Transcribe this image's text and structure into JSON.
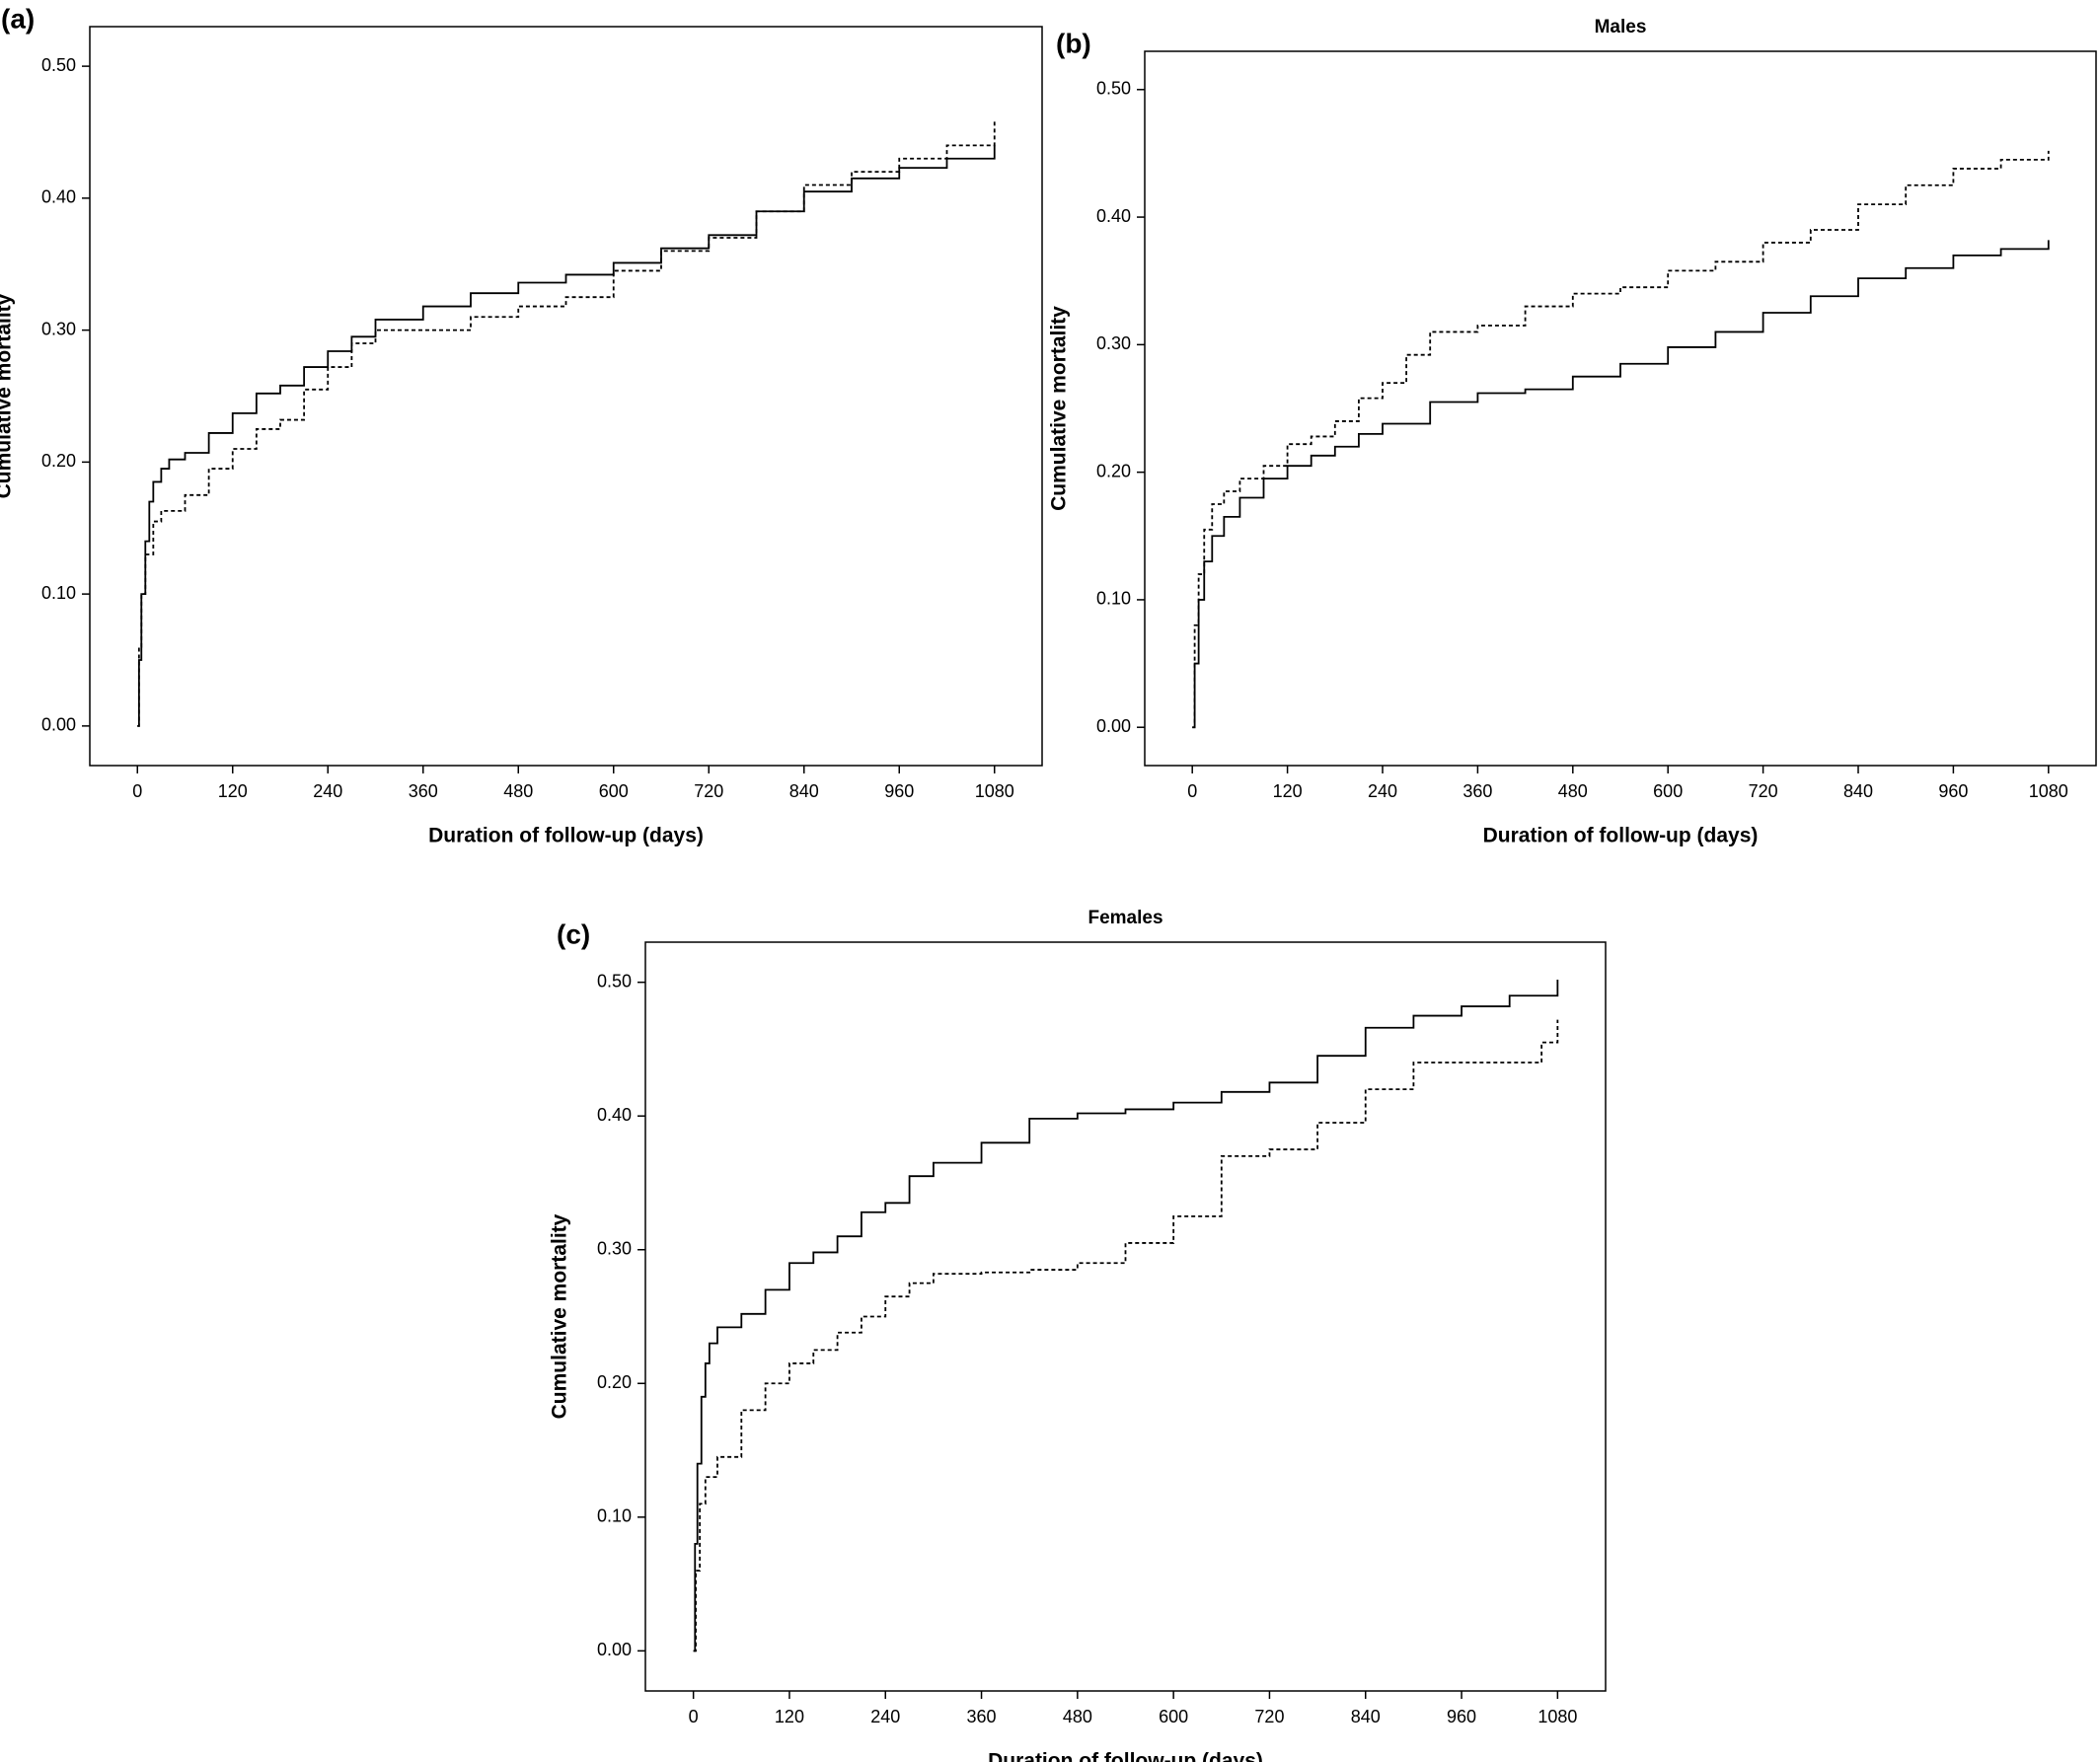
{
  "chart_data": [
    {
      "type": "line",
      "panel": "(a)",
      "xlabel": "Duration of follow-up (days)",
      "ylabel": "Cumulative mortality",
      "xlim": [
        -60,
        1140
      ],
      "ylim": [
        -0.03,
        0.53
      ],
      "xticks": [
        0,
        120,
        240,
        360,
        480,
        600,
        720,
        840,
        960,
        1080
      ],
      "yticks": [
        {
          "value": 0,
          "label": "0.00"
        },
        {
          "value": 0.1,
          "label": "0.10"
        },
        {
          "value": 0.2,
          "label": "0.20"
        },
        {
          "value": 0.3,
          "label": "0.30"
        },
        {
          "value": 0.4,
          "label": "0.40"
        },
        {
          "value": 0.5,
          "label": "0.50"
        }
      ],
      "series": [
        {
          "style": "solid",
          "color": "#000000",
          "x": [
            0,
            2,
            5,
            10,
            15,
            20,
            30,
            40,
            60,
            90,
            120,
            150,
            180,
            210,
            240,
            270,
            300,
            360,
            420,
            480,
            540,
            600,
            660,
            720,
            780,
            840,
            900,
            960,
            1020,
            1080
          ],
          "values": [
            0,
            0.05,
            0.1,
            0.14,
            0.17,
            0.185,
            0.195,
            0.202,
            0.207,
            0.222,
            0.237,
            0.252,
            0.258,
            0.272,
            0.284,
            0.295,
            0.308,
            0.318,
            0.328,
            0.336,
            0.342,
            0.351,
            0.362,
            0.372,
            0.39,
            0.405,
            0.415,
            0.423,
            0.43,
            0.44
          ]
        },
        {
          "style": "dashed",
          "color": "#000000",
          "x": [
            0,
            2,
            5,
            10,
            20,
            30,
            60,
            90,
            120,
            150,
            180,
            210,
            240,
            270,
            300,
            360,
            420,
            480,
            540,
            600,
            660,
            720,
            780,
            840,
            900,
            960,
            1020,
            1080
          ],
          "values": [
            0,
            0.06,
            0.1,
            0.13,
            0.155,
            0.163,
            0.175,
            0.195,
            0.21,
            0.225,
            0.232,
            0.255,
            0.272,
            0.29,
            0.3,
            0.3,
            0.31,
            0.318,
            0.325,
            0.345,
            0.36,
            0.37,
            0.39,
            0.41,
            0.42,
            0.43,
            0.44,
            0.46
          ]
        }
      ]
    },
    {
      "type": "line",
      "panel": "(b)",
      "title": "Males",
      "xlabel": "Duration of follow-up (days)",
      "ylabel": "Cumulative mortality",
      "xlim": [
        -60,
        1140
      ],
      "ylim": [
        -0.03,
        0.53
      ],
      "xticks": [
        0,
        120,
        240,
        360,
        480,
        600,
        720,
        840,
        960,
        1080
      ],
      "yticks": [
        {
          "value": 0,
          "label": "0.00"
        },
        {
          "value": 0.1,
          "label": "0.10"
        },
        {
          "value": 0.2,
          "label": "0.20"
        },
        {
          "value": 0.3,
          "label": "0.30"
        },
        {
          "value": 0.4,
          "label": "0.40"
        },
        {
          "value": 0.5,
          "label": "0.50"
        }
      ],
      "series": [
        {
          "style": "solid",
          "color": "#000000",
          "x": [
            0,
            3,
            8,
            15,
            25,
            40,
            60,
            90,
            120,
            150,
            180,
            210,
            240,
            300,
            360,
            420,
            480,
            540,
            600,
            660,
            720,
            780,
            840,
            900,
            960,
            1020,
            1080
          ],
          "values": [
            0,
            0.05,
            0.1,
            0.13,
            0.15,
            0.165,
            0.18,
            0.195,
            0.205,
            0.213,
            0.22,
            0.23,
            0.238,
            0.255,
            0.262,
            0.265,
            0.275,
            0.285,
            0.298,
            0.31,
            0.325,
            0.338,
            0.352,
            0.36,
            0.37,
            0.375,
            0.382
          ]
        },
        {
          "style": "dashed",
          "color": "#000000",
          "x": [
            0,
            3,
            8,
            15,
            25,
            40,
            60,
            90,
            120,
            150,
            180,
            210,
            240,
            270,
            300,
            360,
            420,
            480,
            540,
            600,
            660,
            720,
            780,
            840,
            900,
            960,
            1020,
            1080
          ],
          "values": [
            0,
            0.08,
            0.12,
            0.155,
            0.175,
            0.185,
            0.195,
            0.205,
            0.222,
            0.228,
            0.24,
            0.258,
            0.27,
            0.292,
            0.31,
            0.315,
            0.33,
            0.34,
            0.345,
            0.358,
            0.365,
            0.38,
            0.39,
            0.41,
            0.425,
            0.438,
            0.445,
            0.452
          ]
        }
      ]
    },
    {
      "type": "line",
      "panel": "(c)",
      "title": "Females",
      "xlabel": "Duration of follow-up (days)",
      "ylabel": "Cumulative mortality",
      "xlim": [
        -60,
        1140
      ],
      "ylim": [
        -0.03,
        0.53
      ],
      "xticks": [
        0,
        120,
        240,
        360,
        480,
        600,
        720,
        840,
        960,
        1080
      ],
      "yticks": [
        {
          "value": 0,
          "label": "0.00"
        },
        {
          "value": 0.1,
          "label": "0.10"
        },
        {
          "value": 0.2,
          "label": "0.20"
        },
        {
          "value": 0.3,
          "label": "0.30"
        },
        {
          "value": 0.4,
          "label": "0.40"
        },
        {
          "value": 0.5,
          "label": "0.50"
        }
      ],
      "series": [
        {
          "style": "solid",
          "color": "#000000",
          "x": [
            0,
            2,
            5,
            10,
            15,
            20,
            30,
            60,
            90,
            120,
            150,
            180,
            210,
            240,
            270,
            300,
            360,
            420,
            480,
            540,
            600,
            660,
            720,
            780,
            840,
            900,
            960,
            1020,
            1080
          ],
          "values": [
            0,
            0.08,
            0.14,
            0.19,
            0.215,
            0.23,
            0.242,
            0.252,
            0.27,
            0.29,
            0.298,
            0.31,
            0.328,
            0.335,
            0.355,
            0.365,
            0.38,
            0.398,
            0.402,
            0.405,
            0.41,
            0.418,
            0.425,
            0.445,
            0.466,
            0.475,
            0.482,
            0.49,
            0.502
          ]
        },
        {
          "style": "dashed",
          "color": "#000000",
          "x": [
            0,
            3,
            8,
            15,
            30,
            60,
            90,
            120,
            150,
            180,
            210,
            240,
            270,
            300,
            360,
            420,
            480,
            540,
            600,
            660,
            720,
            780,
            840,
            900,
            960,
            1020,
            1060,
            1080
          ],
          "values": [
            0,
            0.06,
            0.11,
            0.13,
            0.145,
            0.18,
            0.2,
            0.215,
            0.225,
            0.238,
            0.25,
            0.265,
            0.275,
            0.282,
            0.283,
            0.285,
            0.29,
            0.305,
            0.325,
            0.37,
            0.375,
            0.395,
            0.42,
            0.44,
            0.44,
            0.44,
            0.455,
            0.472
          ]
        }
      ]
    }
  ]
}
